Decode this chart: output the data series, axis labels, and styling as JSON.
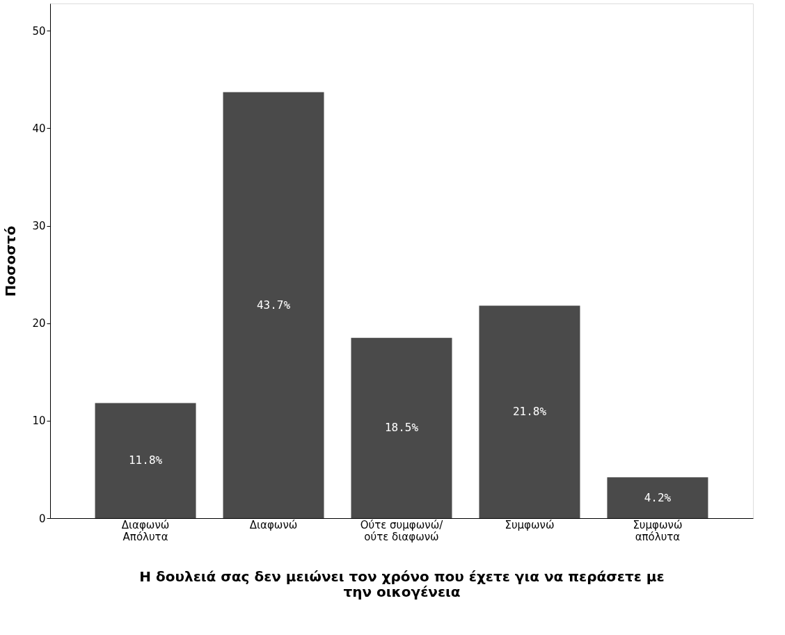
{
  "chart_data": {
    "type": "bar",
    "xlabel": "Η δουλειά σας δεν μειώνει τον χρόνο που έχετε για να περάσετε με\nτην οικογένεια",
    "ylabel": "Ποσοστό",
    "categories": [
      "Διαφωνώ\nΑπόλυτα",
      "Διαφωνώ",
      "Ούτε συμφωνώ/\nούτε διαφωνώ",
      "Συμφωνώ",
      "Συμφωνώ\nαπόλυτα"
    ],
    "values": [
      11.8,
      43.7,
      18.5,
      21.8,
      4.2
    ],
    "value_labels": [
      "11.8%",
      "43.7%",
      "18.5%",
      "21.8%",
      "4.2%"
    ],
    "color": "#4a4a4a",
    "ylim": [
      0,
      52.8
    ],
    "yticks": [
      0,
      10,
      20,
      30,
      40,
      50
    ],
    "grid": false
  }
}
